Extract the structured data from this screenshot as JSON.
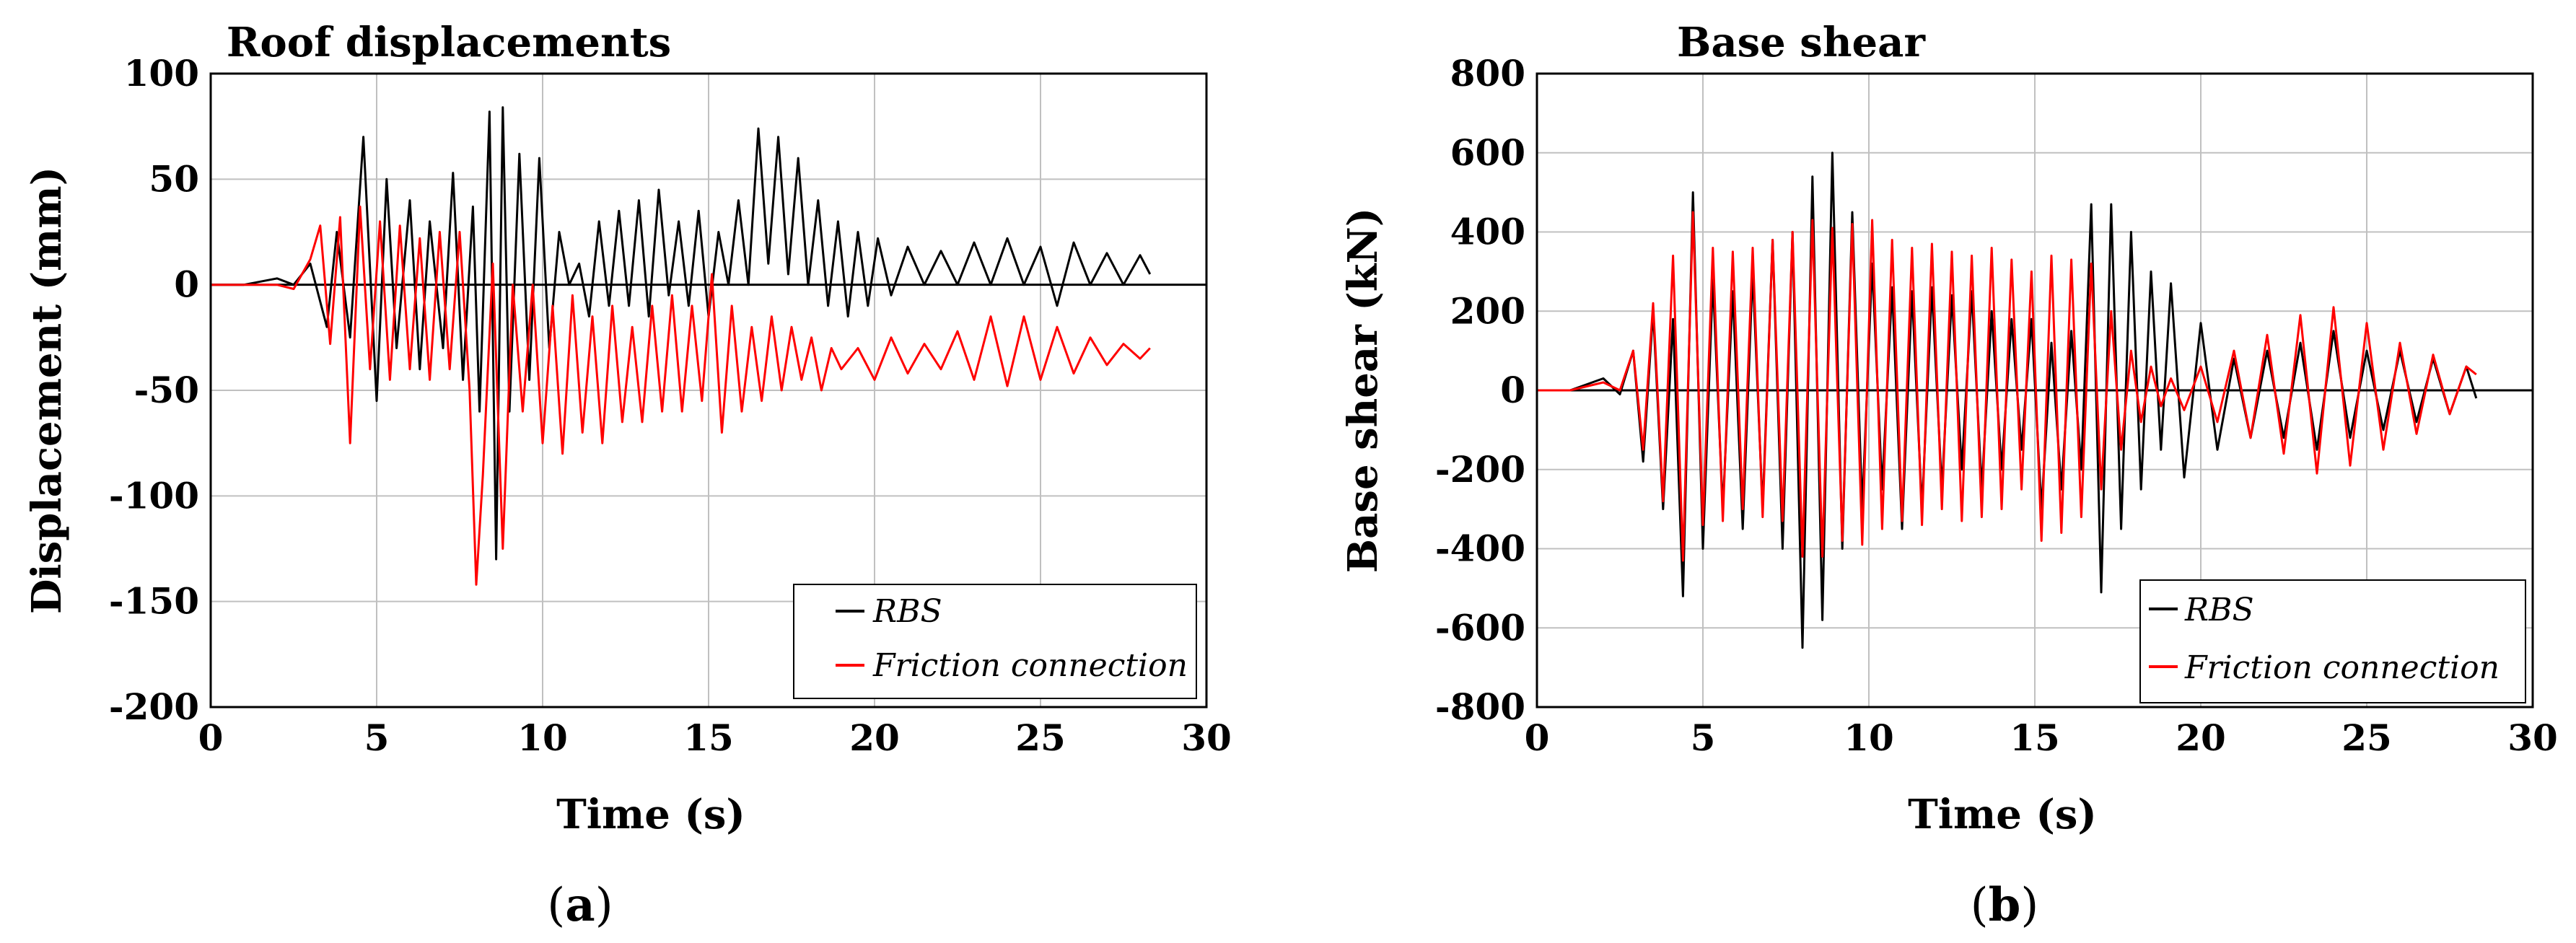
{
  "chart_data": [
    {
      "type": "line",
      "panel_label": "a",
      "title": "Roof displacements",
      "xlabel": "Time (s)",
      "ylabel": "Displacement (mm)",
      "xlim": [
        0,
        30
      ],
      "ylim": [
        -200,
        100
      ],
      "x_ticks": [
        0,
        5,
        10,
        15,
        20,
        25,
        30
      ],
      "y_ticks": [
        -200,
        -150,
        -100,
        -50,
        0,
        50,
        100
      ],
      "grid": true,
      "legend_position": "bottom-right",
      "series": [
        {
          "name": "RBS",
          "color": "#000000",
          "x": [
            0,
            1,
            2,
            2.5,
            3,
            3.5,
            3.8,
            4.2,
            4.6,
            5.0,
            5.3,
            5.6,
            6.0,
            6.3,
            6.6,
            7.0,
            7.3,
            7.6,
            7.9,
            8.1,
            8.4,
            8.6,
            8.8,
            9.0,
            9.3,
            9.6,
            9.9,
            10.2,
            10.5,
            10.8,
            11.1,
            11.4,
            11.7,
            12.0,
            12.3,
            12.6,
            12.9,
            13.2,
            13.5,
            13.8,
            14.1,
            14.4,
            14.7,
            15.0,
            15.3,
            15.6,
            15.9,
            16.2,
            16.5,
            16.8,
            17.1,
            17.4,
            17.7,
            18.0,
            18.3,
            18.6,
            18.9,
            19.2,
            19.5,
            19.8,
            20.1,
            20.5,
            21.0,
            21.5,
            22.0,
            22.5,
            23.0,
            23.5,
            24.0,
            24.5,
            25.0,
            25.5,
            26.0,
            26.5,
            27.0,
            27.5,
            28.0,
            28.3
          ],
          "values": [
            0,
            0,
            3,
            0,
            10,
            -20,
            25,
            -25,
            70,
            -55,
            50,
            -30,
            40,
            -40,
            30,
            -30,
            53,
            -45,
            37,
            -60,
            82,
            -130,
            84,
            -60,
            62,
            -45,
            60,
            -30,
            25,
            0,
            10,
            -15,
            30,
            -10,
            35,
            -10,
            40,
            -15,
            45,
            -5,
            30,
            -10,
            35,
            -15,
            25,
            0,
            40,
            0,
            74,
            10,
            70,
            5,
            60,
            0,
            40,
            -10,
            30,
            -15,
            25,
            -10,
            22,
            -5,
            18,
            0,
            16,
            0,
            20,
            0,
            22,
            0,
            18,
            -10,
            20,
            0,
            15,
            0,
            14,
            5
          ]
        },
        {
          "name": "Friction connection",
          "color": "#ff0000",
          "x": [
            0,
            1,
            2,
            2.5,
            3,
            3.3,
            3.6,
            3.9,
            4.2,
            4.5,
            4.8,
            5.1,
            5.4,
            5.7,
            6.0,
            6.3,
            6.6,
            6.9,
            7.2,
            7.5,
            7.8,
            8.0,
            8.2,
            8.5,
            8.8,
            9.1,
            9.4,
            9.7,
            10.0,
            10.3,
            10.6,
            10.9,
            11.2,
            11.5,
            11.8,
            12.1,
            12.4,
            12.7,
            13.0,
            13.3,
            13.6,
            13.9,
            14.2,
            14.5,
            14.8,
            15.1,
            15.4,
            15.7,
            16.0,
            16.3,
            16.6,
            16.9,
            17.2,
            17.5,
            17.8,
            18.1,
            18.4,
            18.7,
            19.0,
            19.5,
            20.0,
            20.5,
            21.0,
            21.5,
            22.0,
            22.5,
            23.0,
            23.5,
            24.0,
            24.5,
            25.0,
            25.5,
            26.0,
            26.5,
            27.0,
            27.5,
            28.0,
            28.3
          ],
          "values": [
            0,
            0,
            0,
            -2,
            12,
            28,
            -28,
            32,
            -75,
            37,
            -40,
            30,
            -45,
            28,
            -40,
            22,
            -45,
            25,
            -40,
            25,
            -50,
            -142,
            -90,
            10,
            -125,
            0,
            -60,
            0,
            -75,
            -10,
            -80,
            -5,
            -70,
            -15,
            -75,
            -10,
            -65,
            -20,
            -65,
            -10,
            -60,
            -5,
            -60,
            -10,
            -55,
            5,
            -70,
            -10,
            -60,
            -20,
            -55,
            -15,
            -50,
            -20,
            -45,
            -25,
            -50,
            -30,
            -40,
            -30,
            -45,
            -25,
            -42,
            -28,
            -40,
            -22,
            -45,
            -15,
            -48,
            -15,
            -45,
            -20,
            -42,
            -25,
            -38,
            -28,
            -35,
            -30
          ]
        }
      ]
    },
    {
      "type": "line",
      "panel_label": "b",
      "title": "Base shear",
      "xlabel": "Time (s)",
      "ylabel": "Base shear (kN)",
      "xlim": [
        0,
        30
      ],
      "ylim": [
        -800,
        800
      ],
      "x_ticks": [
        0,
        5,
        10,
        15,
        20,
        25,
        30
      ],
      "y_ticks": [
        -800,
        -600,
        -400,
        -200,
        0,
        200,
        400,
        600,
        800
      ],
      "grid": true,
      "legend_position": "bottom-right",
      "series": [
        {
          "name": "RBS",
          "color": "#000000",
          "x": [
            0,
            1,
            2,
            2.5,
            2.9,
            3.2,
            3.5,
            3.8,
            4.1,
            4.4,
            4.7,
            5.0,
            5.3,
            5.6,
            5.9,
            6.2,
            6.5,
            6.8,
            7.1,
            7.4,
            7.7,
            8.0,
            8.3,
            8.6,
            8.9,
            9.2,
            9.5,
            9.8,
            10.1,
            10.4,
            10.7,
            11.0,
            11.3,
            11.6,
            11.9,
            12.2,
            12.5,
            12.8,
            13.1,
            13.4,
            13.7,
            14.0,
            14.3,
            14.6,
            14.9,
            15.2,
            15.5,
            15.8,
            16.1,
            16.4,
            16.7,
            17.0,
            17.3,
            17.6,
            17.9,
            18.2,
            18.5,
            18.8,
            19.1,
            19.5,
            20.0,
            20.5,
            21.0,
            21.5,
            22.0,
            22.5,
            23.0,
            23.5,
            24.0,
            24.5,
            25.0,
            25.5,
            26.0,
            26.5,
            27.0,
            27.5,
            28.0,
            28.3
          ],
          "values": [
            0,
            0,
            30,
            -10,
            100,
            -180,
            200,
            -300,
            180,
            -520,
            500,
            -400,
            280,
            -300,
            250,
            -350,
            300,
            -300,
            380,
            -400,
            400,
            -650,
            540,
            -580,
            600,
            -400,
            450,
            -300,
            320,
            -250,
            260,
            -350,
            250,
            -300,
            260,
            -250,
            240,
            -200,
            250,
            -250,
            200,
            -200,
            180,
            -150,
            180,
            -300,
            120,
            -250,
            150,
            -200,
            470,
            -510,
            470,
            -350,
            400,
            -250,
            300,
            -150,
            270,
            -220,
            170,
            -150,
            80,
            -120,
            100,
            -120,
            120,
            -150,
            150,
            -120,
            100,
            -100,
            100,
            -80,
            80,
            -60,
            60,
            -20
          ]
        },
        {
          "name": "Friction connection",
          "color": "#ff0000",
          "x": [
            0,
            1,
            2,
            2.5,
            2.9,
            3.2,
            3.5,
            3.8,
            4.1,
            4.4,
            4.7,
            5.0,
            5.3,
            5.6,
            5.9,
            6.2,
            6.5,
            6.8,
            7.1,
            7.4,
            7.7,
            8.0,
            8.3,
            8.6,
            8.9,
            9.2,
            9.5,
            9.8,
            10.1,
            10.4,
            10.7,
            11.0,
            11.3,
            11.6,
            11.9,
            12.2,
            12.5,
            12.8,
            13.1,
            13.4,
            13.7,
            14.0,
            14.3,
            14.6,
            14.9,
            15.2,
            15.5,
            15.8,
            16.1,
            16.4,
            16.7,
            17.0,
            17.3,
            17.6,
            17.9,
            18.2,
            18.5,
            18.8,
            19.1,
            19.5,
            20.0,
            20.5,
            21.0,
            21.5,
            22.0,
            22.5,
            23.0,
            23.5,
            24.0,
            24.5,
            25.0,
            25.5,
            26.0,
            26.5,
            27.0,
            27.5,
            28.0,
            28.3
          ],
          "values": [
            0,
            0,
            20,
            0,
            100,
            -150,
            220,
            -280,
            340,
            -430,
            450,
            -340,
            360,
            -330,
            350,
            -300,
            360,
            -320,
            380,
            -330,
            400,
            -420,
            430,
            -420,
            410,
            -380,
            420,
            -390,
            430,
            -350,
            380,
            -330,
            360,
            -340,
            370,
            -300,
            350,
            -330,
            340,
            -320,
            360,
            -300,
            330,
            -250,
            300,
            -380,
            340,
            -360,
            330,
            -320,
            320,
            -250,
            200,
            -150,
            100,
            -80,
            60,
            -40,
            30,
            -50,
            60,
            -80,
            100,
            -120,
            140,
            -160,
            190,
            -210,
            210,
            -190,
            170,
            -150,
            120,
            -110,
            90,
            -60,
            60,
            40
          ]
        }
      ]
    }
  ]
}
